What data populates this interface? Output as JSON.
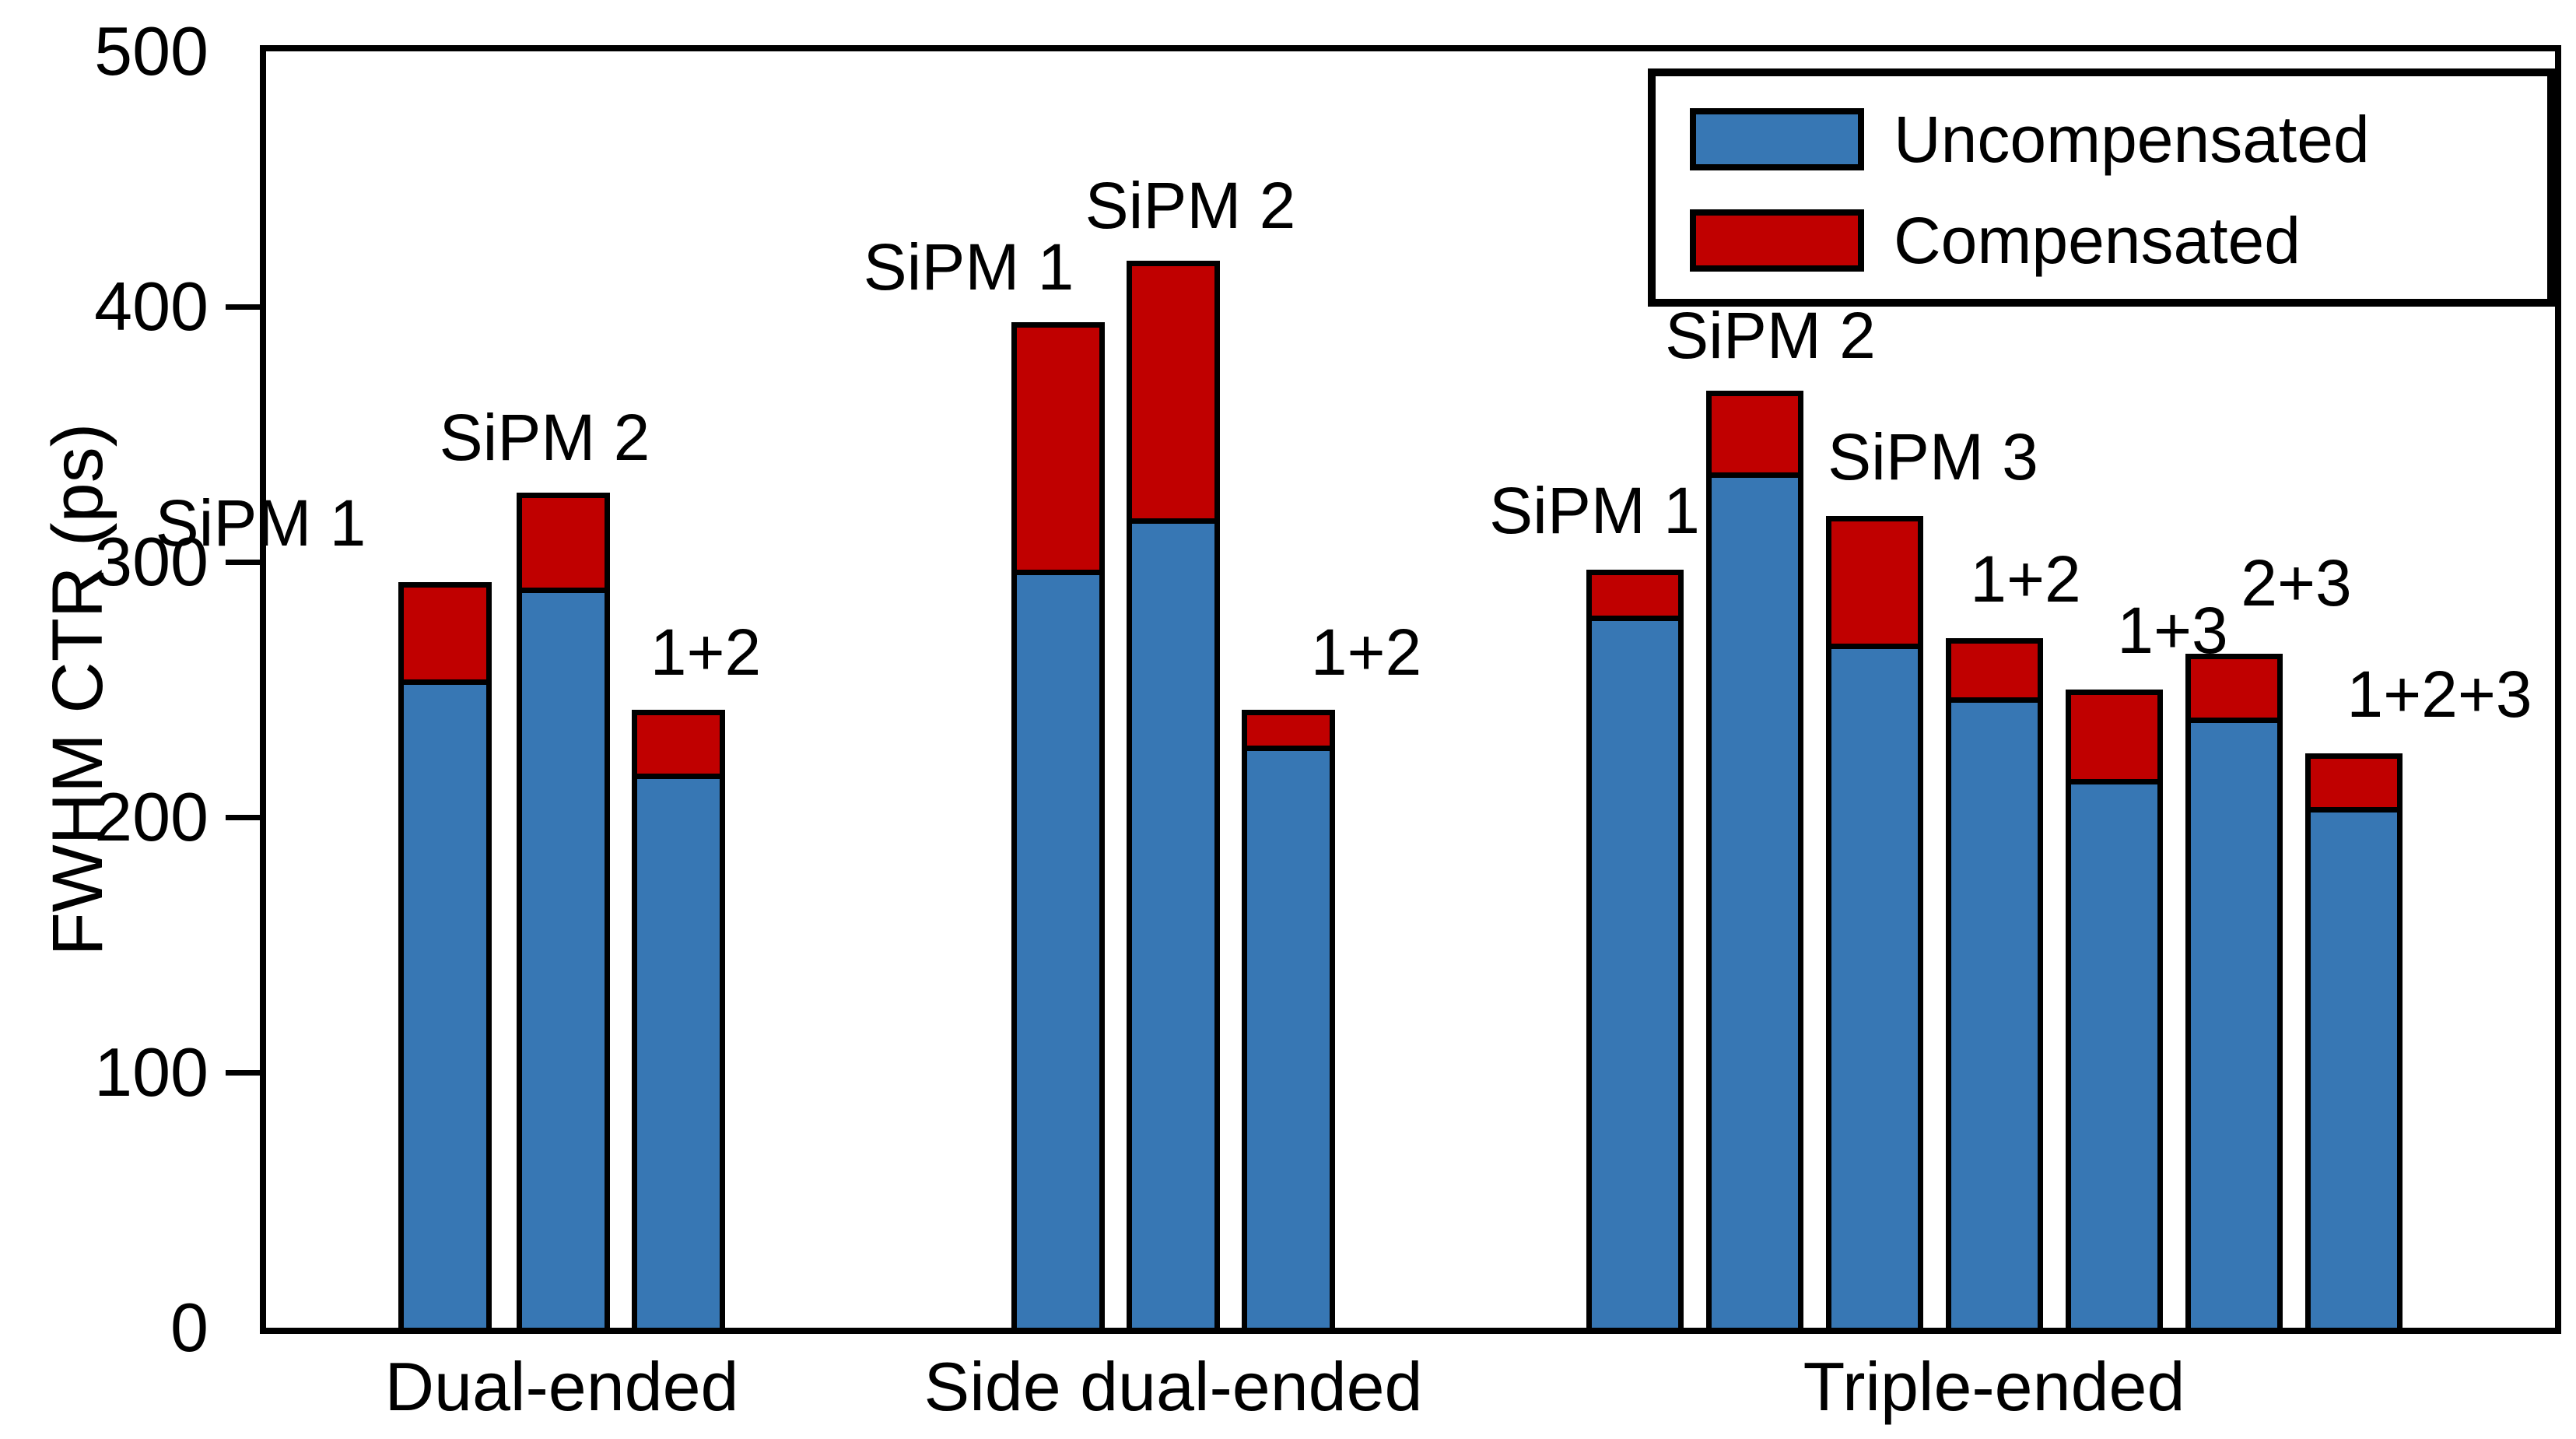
{
  "figure": {
    "y_axis": {
      "title": "FWHM CTR (ps)",
      "tick_labels": [
        "0",
        "100",
        "200",
        "300",
        "400",
        "500"
      ],
      "ticks": [
        0,
        100,
        200,
        300,
        400,
        500
      ],
      "min": 0,
      "max": 500
    },
    "legend": {
      "items": [
        {
          "label": "Uncompensated",
          "color": "#3777B4"
        },
        {
          "label": "Compensated",
          "color": "#C00000"
        }
      ]
    },
    "colors": {
      "blue": "#3777B4",
      "red": "#C00000",
      "outline": "#000000",
      "background": "#FFFFFF"
    }
  },
  "chart_data": {
    "type": "bar",
    "stacked": true,
    "ylabel": "FWHM CTR (ps)",
    "ylim": [
      0,
      500
    ],
    "grid": false,
    "legend_position": "upper right",
    "series": [
      {
        "name": "Uncompensated",
        "color": "#3777B4"
      },
      {
        "name": "Compensated",
        "color": "#C00000"
      }
    ],
    "groups": [
      {
        "label": "Dual-ended",
        "bars": [
          {
            "label": "SiPM 1",
            "blue_top": 254,
            "red_top": 292,
            "red_segment": 38
          },
          {
            "label": "SiPM 2",
            "blue_top": 290,
            "red_top": 327,
            "red_segment": 37
          },
          {
            "label": "1+2",
            "blue_top": 217,
            "red_top": 242,
            "red_segment": 25
          }
        ]
      },
      {
        "label": "Side dual-ended",
        "bars": [
          {
            "label": "SiPM 1",
            "blue_top": 297,
            "red_top": 394,
            "red_segment": 97
          },
          {
            "label": "SiPM 2",
            "blue_top": 317,
            "red_top": 418,
            "red_segment": 101
          },
          {
            "label": "1+2",
            "blue_top": 228,
            "red_top": 242,
            "red_segment": 14
          }
        ]
      },
      {
        "label": "Triple-ended",
        "bars": [
          {
            "label": "SiPM 1",
            "blue_top": 279,
            "red_top": 297,
            "red_segment": 18
          },
          {
            "label": "SiPM 2",
            "blue_top": 335,
            "red_top": 367,
            "red_segment": 32
          },
          {
            "label": "SiPM 3",
            "blue_top": 268,
            "red_top": 318,
            "red_segment": 50
          },
          {
            "label": "1+2",
            "blue_top": 247,
            "red_top": 270,
            "red_segment": 23
          },
          {
            "label": "1+3",
            "blue_top": 215,
            "red_top": 250,
            "red_segment": 35
          },
          {
            "label": "2+3",
            "blue_top": 239,
            "red_top": 264,
            "red_segment": 25
          },
          {
            "label": "1+2+3",
            "blue_top": 204,
            "red_top": 225,
            "red_segment": 21
          }
        ]
      }
    ]
  }
}
